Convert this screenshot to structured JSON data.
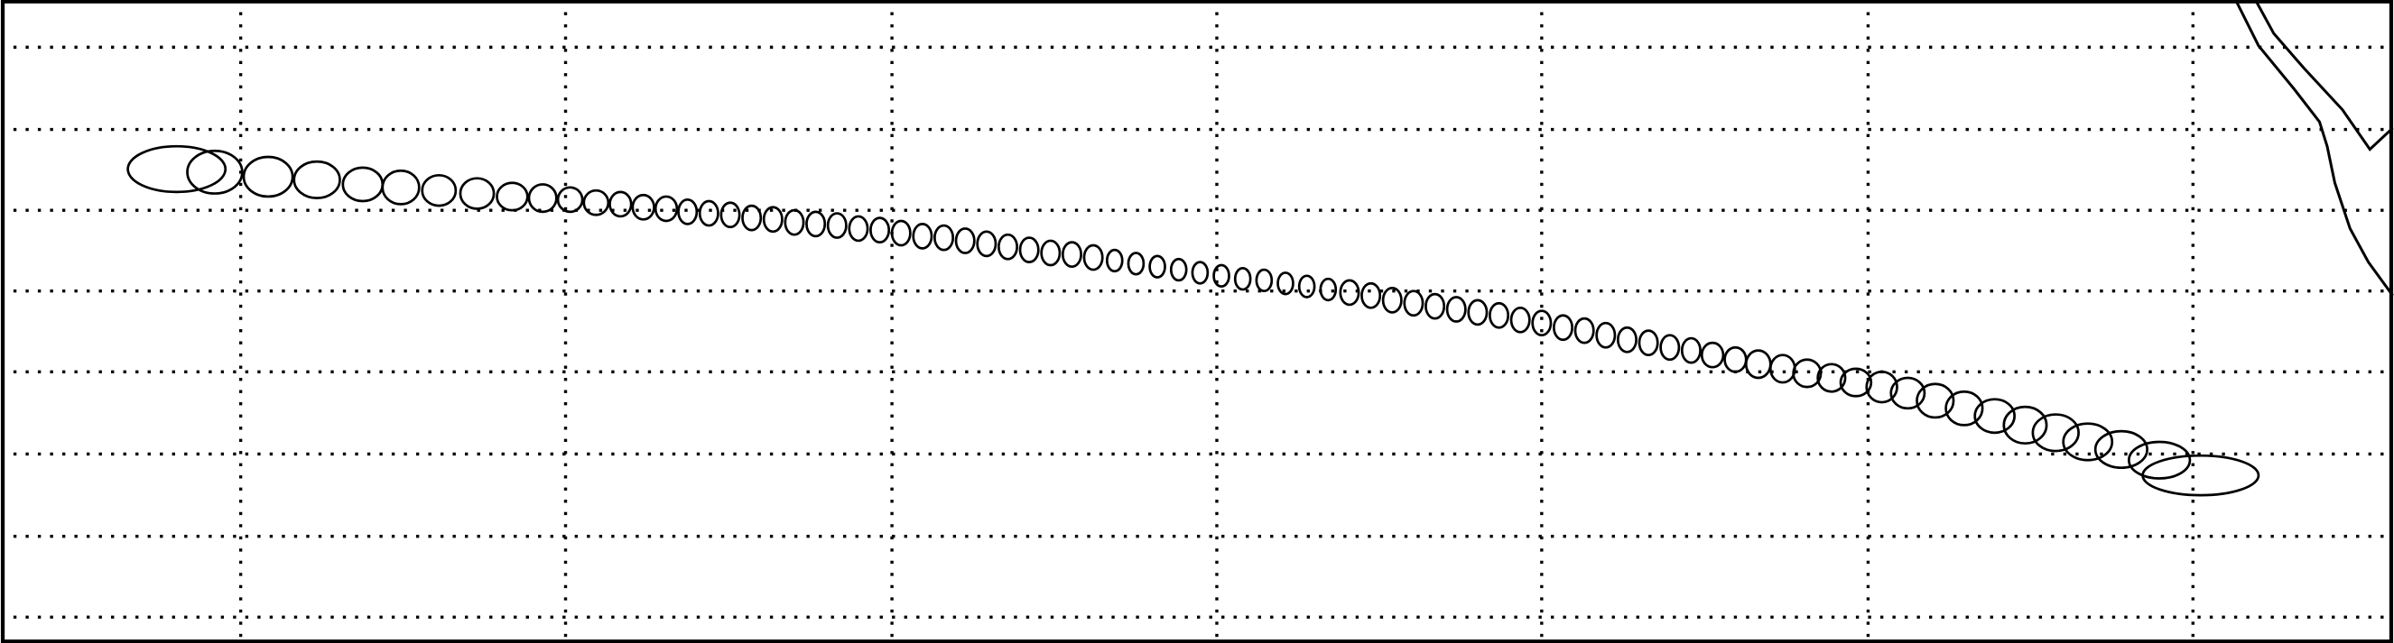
{
  "chart_data": {
    "type": "scatter",
    "grid": true,
    "color": "#000000",
    "xlim": [
      0,
      1568
    ],
    "ylim": [
      422,
      0
    ],
    "xticks": [
      157,
      370,
      584,
      797,
      1010,
      1224,
      1437
    ],
    "yticks": [
      31,
      85,
      138,
      191,
      244,
      298,
      352,
      405
    ],
    "x": [
      115,
      140,
      175,
      207,
      237,
      262,
      287,
      312,
      335,
      355,
      373,
      390,
      406,
      421,
      436,
      450,
      464,
      478,
      492,
      506,
      520,
      534,
      548,
      562,
      576,
      590,
      604,
      618,
      632,
      646,
      660,
      674,
      688,
      702,
      716,
      730,
      744,
      758,
      772,
      786,
      800,
      814,
      828,
      842,
      856,
      870,
      884,
      898,
      912,
      926,
      940,
      954,
      968,
      982,
      996,
      1010,
      1024,
      1038,
      1052,
      1066,
      1080,
      1094,
      1108,
      1122,
      1137,
      1152,
      1168,
      1184,
      1200,
      1216,
      1233,
      1250,
      1268,
      1287,
      1307,
      1327,
      1347,
      1368,
      1390,
      1415,
      1442
    ],
    "y": [
      111,
      113,
      116,
      118,
      121,
      123,
      125,
      127,
      129,
      130,
      131,
      133,
      134,
      136,
      137,
      139,
      140,
      141,
      143,
      144,
      146,
      147,
      148,
      150,
      151,
      153,
      155,
      156,
      158,
      160,
      162,
      164,
      166,
      167,
      169,
      171,
      173,
      175,
      177,
      179,
      181,
      183,
      184,
      186,
      188,
      190,
      192,
      194,
      197,
      199,
      201,
      203,
      205,
      207,
      210,
      212,
      215,
      217,
      220,
      223,
      225,
      228,
      230,
      233,
      236,
      239,
      242,
      245,
      248,
      251,
      254,
      258,
      263,
      268,
      273,
      279,
      284,
      290,
      295,
      302,
      312
    ],
    "rx": [
      32,
      18,
      16,
      15,
      13,
      12,
      11,
      11,
      10,
      9,
      8,
      8,
      7,
      7,
      7,
      6,
      6,
      6,
      6,
      6,
      6,
      6,
      6,
      6,
      6,
      6,
      6,
      6,
      6,
      6,
      6,
      6,
      6,
      6,
      6,
      5,
      5,
      5,
      5,
      5,
      5,
      5,
      5,
      5,
      5,
      5,
      6,
      6,
      6,
      6,
      6,
      6,
      6,
      6,
      6,
      6,
      6,
      6,
      6,
      6,
      6,
      6,
      6,
      7,
      7,
      8,
      8,
      9,
      9,
      10,
      10,
      11,
      12,
      12,
      13,
      14,
      15,
      16,
      17,
      20,
      38
    ],
    "ry": [
      15,
      14,
      13,
      12,
      11,
      11,
      10,
      10,
      9,
      9,
      8,
      8,
      8,
      8,
      8,
      8,
      8,
      8,
      8,
      8,
      8,
      8,
      8,
      8,
      8,
      8,
      8,
      8,
      8,
      8,
      8,
      8,
      8,
      8,
      8,
      7,
      7,
      7,
      7,
      7,
      7,
      7,
      7,
      7,
      7,
      7,
      8,
      8,
      8,
      8,
      8,
      8,
      8,
      8,
      8,
      8,
      8,
      8,
      8,
      8,
      8,
      8,
      8,
      8,
      8,
      9,
      9,
      9,
      9,
      9,
      10,
      10,
      11,
      11,
      11,
      12,
      12,
      12,
      12,
      12,
      13
    ]
  }
}
